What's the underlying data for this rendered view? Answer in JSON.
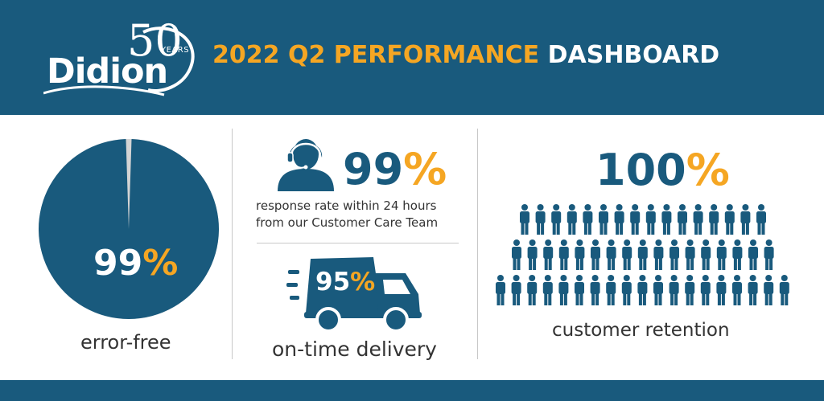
{
  "header": {
    "logo": {
      "wordmark": "Didion",
      "anniversary_number": "50",
      "anniversary_label": "YEARS"
    },
    "title_accent": "2022 Q2 PERFORMANCE",
    "title_rest": "DASHBOARD"
  },
  "metrics": {
    "error_free": {
      "value": "99",
      "percent_sign": "%",
      "label": "error-free",
      "fraction": 0.99
    },
    "response": {
      "value": "99",
      "percent_sign": "%",
      "label_line1": "response rate within 24 hours",
      "label_line2": "from our Customer Care Team"
    },
    "delivery": {
      "value": "95",
      "percent_sign": "%",
      "label": "on-time delivery"
    },
    "retention": {
      "value": "100",
      "percent_sign": "%",
      "label": "customer retention"
    }
  },
  "colors": {
    "brand_blue": "#195a7d",
    "accent_orange": "#f5a623",
    "pie_remainder": "#d4d4d4"
  },
  "icons": [
    "customer-service-agent-icon",
    "delivery-truck-icon",
    "person-icon"
  ]
}
